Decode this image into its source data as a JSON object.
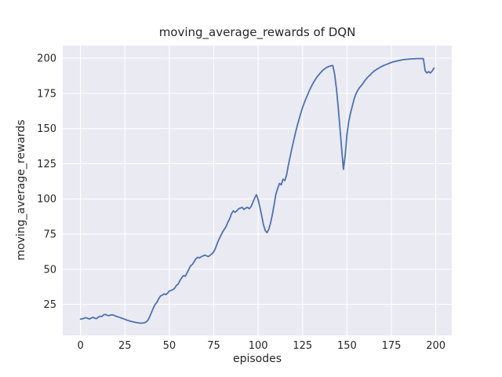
{
  "chart_data": {
    "type": "line",
    "title": "moving_average_rewards of DQN",
    "xlabel": "episodes",
    "ylabel": "moving_average_rewards",
    "series_name": "moving_average_rewards",
    "x_start": 0,
    "x_step": 1,
    "values": [
      14.5,
      14.8,
      15.2,
      15.6,
      15.1,
      14.6,
      15.3,
      15.8,
      15.2,
      14.9,
      15.9,
      16.6,
      16.4,
      17.6,
      17.9,
      17.3,
      17.0,
      17.5,
      17.6,
      17.2,
      16.6,
      16.2,
      15.8,
      15.3,
      14.9,
      14.4,
      13.9,
      13.5,
      13.1,
      12.8,
      12.5,
      12.2,
      12.0,
      11.8,
      11.7,
      11.8,
      12.0,
      12.6,
      13.8,
      16.5,
      19.5,
      22.5,
      25.0,
      26.5,
      29.0,
      31.0,
      31.5,
      32.5,
      32.0,
      33.0,
      34.5,
      35.0,
      35.5,
      36.5,
      38.5,
      39.5,
      42.0,
      44.0,
      45.5,
      45.0,
      47.5,
      50.0,
      52.5,
      53.5,
      55.5,
      57.5,
      58.5,
      58.0,
      59.0,
      59.5,
      60.0,
      59.5,
      59.0,
      60.0,
      61.0,
      62.5,
      65.0,
      68.5,
      71.5,
      74.0,
      76.5,
      78.5,
      80.5,
      83.5,
      86.0,
      89.5,
      91.5,
      90.5,
      91.5,
      93.0,
      93.5,
      94.0,
      92.5,
      93.5,
      94.0,
      93.0,
      94.5,
      97.5,
      100.5,
      103.0,
      99.5,
      94.0,
      88.0,
      81.5,
      77.5,
      76.0,
      78.5,
      83.0,
      89.0,
      96.0,
      103.5,
      107.5,
      111.0,
      110.0,
      114.0,
      113.0,
      117.0,
      124.0,
      130.0,
      136.0,
      141.5,
      147.0,
      152.0,
      156.5,
      161.0,
      165.0,
      168.5,
      171.5,
      174.5,
      177.5,
      180.0,
      182.5,
      184.5,
      186.5,
      188.0,
      189.5,
      191.0,
      192.0,
      193.0,
      193.7,
      194.2,
      194.6,
      194.8,
      189.0,
      179.0,
      166.0,
      151.0,
      135.5,
      121.0,
      131.0,
      146.0,
      155.0,
      161.0,
      166.0,
      171.0,
      174.5,
      177.0,
      179.0,
      180.5,
      182.0,
      184.0,
      185.5,
      187.0,
      188.0,
      189.5,
      190.5,
      191.5,
      192.3,
      193.0,
      193.8,
      194.4,
      195.0,
      195.5,
      196.0,
      196.5,
      197.0,
      197.4,
      197.7,
      198.0,
      198.3,
      198.5,
      198.8,
      199.0,
      199.2,
      199.3,
      199.4,
      199.5,
      199.6,
      199.6,
      199.7,
      199.7,
      199.7,
      199.7,
      199.7,
      191.0,
      189.5,
      190.5,
      189.5,
      191.0,
      193.0
    ],
    "xlim": [
      -10,
      209
    ],
    "ylim": [
      3,
      209
    ],
    "xticks": [
      0,
      25,
      50,
      75,
      100,
      125,
      150,
      175,
      200
    ],
    "yticks": [
      25,
      50,
      75,
      100,
      125,
      150,
      175,
      200
    ],
    "grid": true,
    "legend": "none",
    "colors": {
      "line": "#4C72B0",
      "plot_bg": "#EAEAF2",
      "grid": "#FFFFFF",
      "text": "#262626",
      "figure_bg": "#FFFFFF"
    }
  }
}
